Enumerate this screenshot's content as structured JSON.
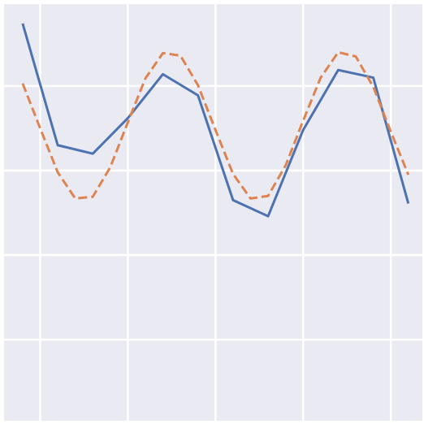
{
  "chart_data": {
    "type": "line",
    "xlim": [
      -0.53,
      11.4
    ],
    "ylim": [
      -2.96,
      1.97
    ],
    "xticks": [
      0.5,
      3,
      5.5,
      8,
      10.5
    ],
    "yticks": [
      -2,
      -1,
      0,
      1
    ],
    "grid": true,
    "background": "#eaeaf2",
    "series": [
      {
        "color": "#4c72b0",
        "linestyle": "solid",
        "x": [
          0,
          1,
          2,
          3,
          4,
          5,
          6,
          7,
          8,
          9,
          10,
          11
        ],
        "values": [
          1.74,
          0.3,
          0.2,
          0.62,
          1.14,
          0.89,
          -0.35,
          -0.54,
          0.48,
          1.19,
          1.1,
          -0.39
        ]
      },
      {
        "color": "#dd8452",
        "linestyle": "dashed",
        "x": [
          0,
          0.5,
          1,
          1.5,
          2,
          2.5,
          3,
          3.5,
          4,
          4.5,
          5,
          5.5,
          6,
          6.5,
          7,
          7.5,
          8,
          8.5,
          9,
          9.5,
          10,
          10.5,
          11
        ],
        "values": [
          1.03,
          0.5,
          -0.02,
          -0.33,
          -0.31,
          0.04,
          0.57,
          1.09,
          1.39,
          1.36,
          1.01,
          0.48,
          -0.04,
          -0.33,
          -0.3,
          0.06,
          0.59,
          1.1,
          1.4,
          1.35,
          0.99,
          0.46,
          -0.05
        ]
      }
    ]
  }
}
